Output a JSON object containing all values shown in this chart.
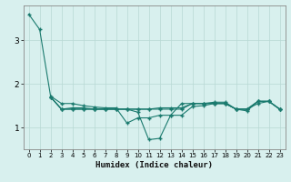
{
  "title": "",
  "xlabel": "Humidex (Indice chaleur)",
  "bg_color": "#d8f0ee",
  "grid_color": "#b8d8d4",
  "line_color": "#1a7a6e",
  "xlim": [
    -0.5,
    23.5
  ],
  "ylim": [
    0.5,
    3.8
  ],
  "yticks": [
    1,
    2,
    3
  ],
  "xticks": [
    0,
    1,
    2,
    3,
    4,
    5,
    6,
    7,
    8,
    9,
    10,
    11,
    12,
    13,
    14,
    15,
    16,
    17,
    18,
    19,
    20,
    21,
    22,
    23
  ],
  "series1_x": [
    0,
    1,
    2,
    3,
    4,
    5,
    6,
    7,
    8,
    9,
    10,
    11,
    12,
    13,
    14,
    15,
    16,
    17,
    18,
    19,
    20,
    21,
    22,
    23
  ],
  "series1_y": [
    3.6,
    3.25,
    1.72,
    1.55,
    1.55,
    1.5,
    1.47,
    1.45,
    1.45,
    1.1,
    1.22,
    1.22,
    1.28,
    1.28,
    1.55,
    1.55,
    1.55,
    1.55,
    1.55,
    1.42,
    1.42,
    1.55,
    1.6,
    1.42
  ],
  "series2_x": [
    2,
    3,
    4,
    5,
    6,
    7,
    8,
    9,
    10,
    11,
    12,
    13,
    14,
    15,
    16,
    17,
    18,
    19,
    20,
    21,
    22,
    23
  ],
  "series2_y": [
    1.7,
    1.42,
    1.42,
    1.42,
    1.42,
    1.42,
    1.42,
    1.42,
    1.35,
    0.72,
    0.75,
    1.28,
    1.28,
    1.48,
    1.5,
    1.55,
    1.55,
    1.42,
    1.38,
    1.6,
    1.6,
    1.42
  ],
  "series3_x": [
    2,
    3,
    4,
    5,
    6,
    7,
    8,
    9,
    10,
    11,
    12,
    13,
    14,
    15,
    16,
    17,
    18,
    19,
    20,
    21,
    22,
    23
  ],
  "series3_y": [
    1.7,
    1.42,
    1.45,
    1.45,
    1.42,
    1.42,
    1.42,
    1.42,
    1.42,
    1.42,
    1.45,
    1.45,
    1.45,
    1.55,
    1.55,
    1.58,
    1.58,
    1.42,
    1.42,
    1.6,
    1.6,
    1.42
  ],
  "series4_x": [
    2,
    3,
    4,
    5,
    6,
    7,
    8,
    9,
    10,
    11,
    12,
    13,
    14,
    15,
    16,
    17,
    18,
    19,
    20,
    21,
    22,
    23
  ],
  "series4_y": [
    1.7,
    1.42,
    1.42,
    1.42,
    1.42,
    1.42,
    1.42,
    1.42,
    1.42,
    1.42,
    1.42,
    1.42,
    1.42,
    1.55,
    1.55,
    1.55,
    1.55,
    1.42,
    1.42,
    1.6,
    1.6,
    1.42
  ]
}
